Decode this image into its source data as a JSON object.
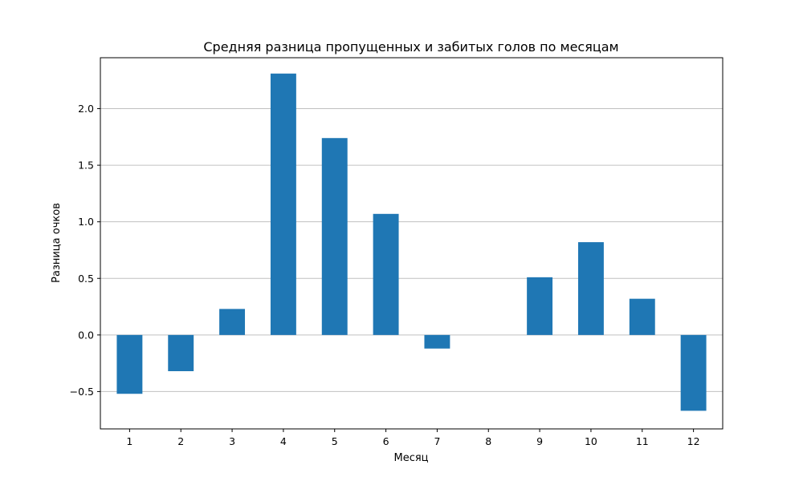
{
  "chart_data": {
    "type": "bar",
    "title": "Средняя разница пропущенных и забитых голов по месяцам",
    "xlabel": "Месяц",
    "ylabel": "Разница очков",
    "categories": [
      "1",
      "2",
      "3",
      "4",
      "5",
      "6",
      "7",
      "8",
      "9",
      "10",
      "11",
      "12"
    ],
    "values": [
      -0.52,
      -0.32,
      0.23,
      2.31,
      1.74,
      1.07,
      -0.12,
      0.0,
      0.51,
      0.82,
      0.32,
      -0.67
    ],
    "ylim": [
      -0.83,
      2.45
    ],
    "yticks": [
      -0.5,
      0.0,
      0.5,
      1.0,
      1.5,
      2.0
    ],
    "ytick_labels": [
      "−0.5",
      "0.0",
      "0.5",
      "1.0",
      "1.5",
      "2.0"
    ],
    "grid": "y",
    "bar_color": "#1f77b4"
  }
}
